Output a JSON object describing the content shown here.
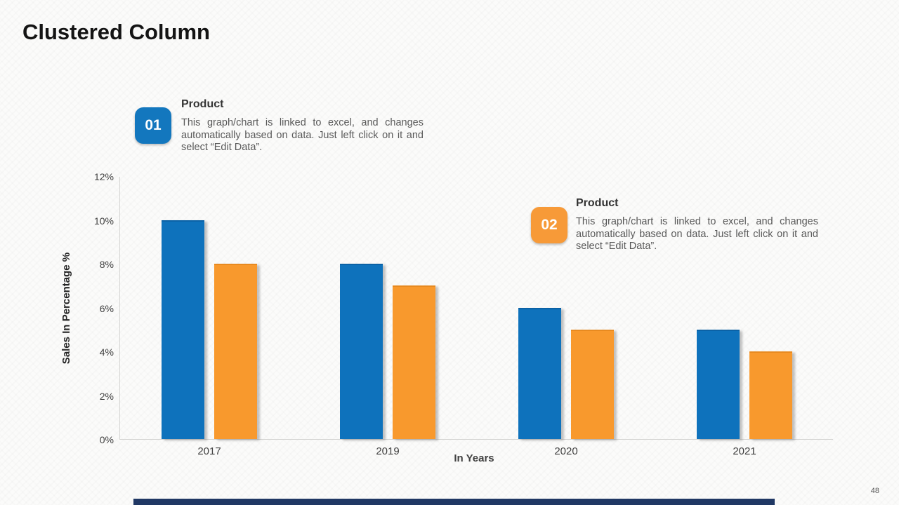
{
  "slide": {
    "title": "Clustered Column",
    "page_number": "48"
  },
  "callouts": [
    {
      "number": "01",
      "heading": "Product",
      "body": "This graph/chart is linked to excel, and changes automatically based on data. Just left click on it and select “Edit Data”.",
      "badge_color": "#1377be"
    },
    {
      "number": "02",
      "heading": "Product",
      "body": "This graph/chart is linked to excel, and changes automatically based on data. Just left click on it and select “Edit Data”.",
      "badge_color": "#f79a38"
    }
  ],
  "chart_data": {
    "type": "bar",
    "categories": [
      "2017",
      "2019",
      "2020",
      "2021"
    ],
    "series": [
      {
        "name": "Product 01",
        "color": "#0e72bc",
        "top_color": "#0b62a6",
        "values": [
          10,
          8,
          6,
          5
        ]
      },
      {
        "name": "Product 02",
        "color": "#f8992d",
        "top_color": "#e88a20",
        "values": [
          8,
          7,
          5,
          4
        ]
      }
    ],
    "title": "",
    "xlabel": "In Years",
    "ylabel": "Sales In Percentage %",
    "ylim": [
      0,
      12
    ],
    "ytick_step": 2,
    "ytick_labels": [
      "0%",
      "2%",
      "4%",
      "6%",
      "8%",
      "10%",
      "12%"
    ],
    "grid": false,
    "legend": "none",
    "axis_color": "#d6d6d4"
  },
  "footer": {
    "bar_color": "#203864"
  }
}
